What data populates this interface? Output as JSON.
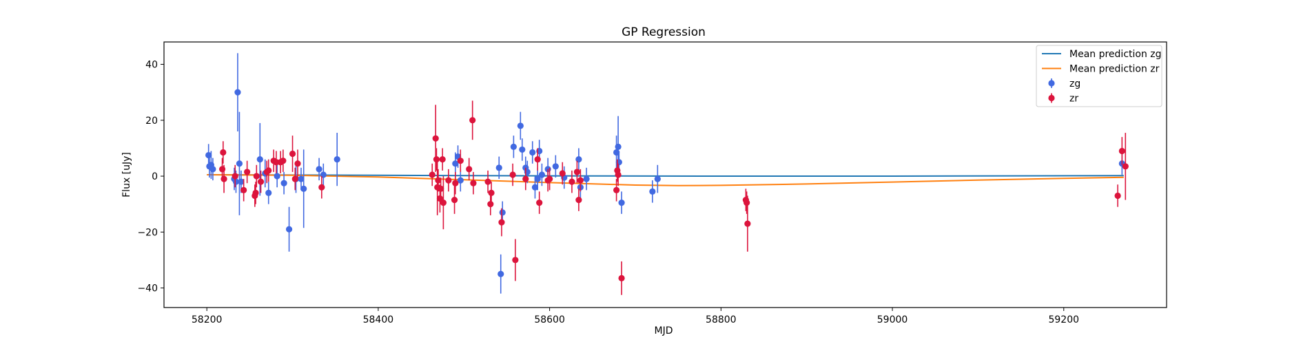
{
  "chart_data": {
    "type": "scatter",
    "title": "GP Regression",
    "xlabel": "MJD",
    "ylabel": "Flux [uJy]",
    "xlim": [
      58150,
      59320
    ],
    "ylim": [
      -47,
      48
    ],
    "xticks": [
      58200,
      58400,
      58600,
      58800,
      59000,
      59200
    ],
    "xtick_labels": [
      "58200",
      "58400",
      "58600",
      "58800",
      "59000",
      "59200"
    ],
    "yticks": [
      -40,
      -20,
      0,
      20,
      40
    ],
    "ytick_labels": [
      "−40",
      "−20",
      "0",
      "20",
      "40"
    ],
    "grid": false,
    "legend_position": "top-right",
    "legend": [
      {
        "label": "Mean prediction zg",
        "kind": "line",
        "color": "#1f77b4"
      },
      {
        "label": "Mean prediction zr",
        "kind": "line",
        "color": "#ff7f0e"
      },
      {
        "label": "zg",
        "kind": "errorbar",
        "color": "#4169e1"
      },
      {
        "label": "zr",
        "kind": "errorbar",
        "color": "#dc143c"
      }
    ],
    "lines": [
      {
        "name": "Mean prediction zg",
        "color": "#1f77b4",
        "x": [
          58200,
          58400,
          58600,
          58800,
          59000,
          59270
        ],
        "y": [
          0.5,
          0.3,
          0.1,
          0.0,
          0.0,
          0.2
        ]
      },
      {
        "name": "Mean prediction zr",
        "color": "#ff7f0e",
        "x": [
          58200,
          58300,
          58400,
          58500,
          58600,
          58700,
          58750,
          58800,
          58900,
          59000,
          59100,
          59200,
          59270
        ],
        "y": [
          0.5,
          0.3,
          -0.3,
          -1.3,
          -2.3,
          -3.2,
          -3.4,
          -3.3,
          -2.8,
          -2.1,
          -1.4,
          -0.8,
          -0.4
        ]
      }
    ],
    "series": [
      {
        "name": "zg",
        "color": "#4169e1",
        "points": [
          {
            "x": 58202,
            "y": 7.5,
            "err": 4
          },
          {
            "x": 58203,
            "y": 3.5,
            "err": 4
          },
          {
            "x": 58205,
            "y": 4,
            "err": 5
          },
          {
            "x": 58207,
            "y": 2.5,
            "err": 4
          },
          {
            "x": 58232,
            "y": -1,
            "err": 4
          },
          {
            "x": 58234,
            "y": -2,
            "err": 4
          },
          {
            "x": 58236,
            "y": 30,
            "err": 14
          },
          {
            "x": 58238,
            "y": 4.5,
            "err": 18.5
          },
          {
            "x": 58240,
            "y": -2,
            "err": 4
          },
          {
            "x": 58262,
            "y": 6,
            "err": 13
          },
          {
            "x": 58268,
            "y": 1,
            "err": 5
          },
          {
            "x": 58272,
            "y": -6,
            "err": 4
          },
          {
            "x": 58282,
            "y": 0,
            "err": 4
          },
          {
            "x": 58290,
            "y": -2.5,
            "err": 4
          },
          {
            "x": 58296,
            "y": -19,
            "err": 8
          },
          {
            "x": 58304,
            "y": -1,
            "err": 5
          },
          {
            "x": 58310,
            "y": -1,
            "err": 4
          },
          {
            "x": 58313,
            "y": -4.5,
            "err": 14
          },
          {
            "x": 58331,
            "y": 2.5,
            "err": 4
          },
          {
            "x": 58336,
            "y": 0.5,
            "err": 4
          },
          {
            "x": 58352,
            "y": 6,
            "err": 9.5
          },
          {
            "x": 58490,
            "y": 4.5,
            "err": 4
          },
          {
            "x": 58493,
            "y": 7,
            "err": 4
          },
          {
            "x": 58496,
            "y": -1.5,
            "err": 4
          },
          {
            "x": 58541,
            "y": 3,
            "err": 4
          },
          {
            "x": 58543,
            "y": -35,
            "err": 7
          },
          {
            "x": 58545,
            "y": -13,
            "err": 4
          },
          {
            "x": 58558,
            "y": 10.5,
            "err": 4
          },
          {
            "x": 58566,
            "y": 18,
            "err": 5
          },
          {
            "x": 58568,
            "y": 9.5,
            "err": 4
          },
          {
            "x": 58572,
            "y": 3,
            "err": 4
          },
          {
            "x": 58574,
            "y": 1.5,
            "err": 4
          },
          {
            "x": 58580,
            "y": 8.5,
            "err": 4
          },
          {
            "x": 58583,
            "y": -4,
            "err": 4
          },
          {
            "x": 58586,
            "y": -1,
            "err": 4
          },
          {
            "x": 58588,
            "y": 9,
            "err": 4
          },
          {
            "x": 58591,
            "y": 0.5,
            "err": 4
          },
          {
            "x": 58598,
            "y": 2.5,
            "err": 4
          },
          {
            "x": 58607,
            "y": 3.5,
            "err": 4
          },
          {
            "x": 58617,
            "y": -0.5,
            "err": 4
          },
          {
            "x": 58634,
            "y": 6,
            "err": 4
          },
          {
            "x": 58636,
            "y": -4,
            "err": 4
          },
          {
            "x": 58643,
            "y": -1,
            "err": 4
          },
          {
            "x": 58678,
            "y": 8.5,
            "err": 6
          },
          {
            "x": 58680,
            "y": 10.5,
            "err": 11
          },
          {
            "x": 58681,
            "y": 5,
            "err": 4
          },
          {
            "x": 58684,
            "y": -9.5,
            "err": 4
          },
          {
            "x": 58720,
            "y": -5.5,
            "err": 4
          },
          {
            "x": 58726,
            "y": -1,
            "err": 5
          },
          {
            "x": 59268,
            "y": 4.5,
            "err": 4
          }
        ]
      },
      {
        "name": "zr",
        "color": "#dc143c",
        "points": [
          {
            "x": 58218,
            "y": 2.5,
            "err": 4
          },
          {
            "x": 58219,
            "y": 8.5,
            "err": 4
          },
          {
            "x": 58220,
            "y": -1,
            "err": 5
          },
          {
            "x": 58233,
            "y": 0,
            "err": 4
          },
          {
            "x": 58243,
            "y": -5,
            "err": 4
          },
          {
            "x": 58247,
            "y": 1.5,
            "err": 4
          },
          {
            "x": 58256,
            "y": -7,
            "err": 4
          },
          {
            "x": 58257,
            "y": -6,
            "err": 4
          },
          {
            "x": 58258,
            "y": 0,
            "err": 4
          },
          {
            "x": 58263,
            "y": -2,
            "err": 4
          },
          {
            "x": 58270,
            "y": 1.5,
            "err": 4
          },
          {
            "x": 58272,
            "y": 2,
            "err": 4
          },
          {
            "x": 58278,
            "y": 5.5,
            "err": 4
          },
          {
            "x": 58281,
            "y": 5,
            "err": 4
          },
          {
            "x": 58286,
            "y": 5,
            "err": 4
          },
          {
            "x": 58289,
            "y": 5.5,
            "err": 4
          },
          {
            "x": 58300,
            "y": 8,
            "err": 6.5
          },
          {
            "x": 58303,
            "y": -1,
            "err": 4
          },
          {
            "x": 58306,
            "y": 4.5,
            "err": 5
          },
          {
            "x": 58334,
            "y": -4,
            "err": 4
          },
          {
            "x": 58463,
            "y": 0.5,
            "err": 4
          },
          {
            "x": 58467,
            "y": 13.5,
            "err": 12
          },
          {
            "x": 58468,
            "y": 6,
            "err": 4
          },
          {
            "x": 58469,
            "y": -4,
            "err": 10
          },
          {
            "x": 58470,
            "y": -1.5,
            "err": 4
          },
          {
            "x": 58472,
            "y": -8,
            "err": 5
          },
          {
            "x": 58473,
            "y": -4.5,
            "err": 4
          },
          {
            "x": 58475,
            "y": 6,
            "err": 4
          },
          {
            "x": 58476,
            "y": -9.5,
            "err": 9.5
          },
          {
            "x": 58482,
            "y": -1.5,
            "err": 4
          },
          {
            "x": 58489,
            "y": -8.5,
            "err": 5
          },
          {
            "x": 58490,
            "y": -2.5,
            "err": 4
          },
          {
            "x": 58496,
            "y": 5.5,
            "err": 4
          },
          {
            "x": 58506,
            "y": 2.5,
            "err": 4
          },
          {
            "x": 58510,
            "y": 20,
            "err": 7
          },
          {
            "x": 58511,
            "y": -2.5,
            "err": 4
          },
          {
            "x": 58528,
            "y": -2,
            "err": 4
          },
          {
            "x": 58531,
            "y": -10,
            "err": 4
          },
          {
            "x": 58532,
            "y": -6,
            "err": 4
          },
          {
            "x": 58544,
            "y": -16.5,
            "err": 5
          },
          {
            "x": 58557,
            "y": 0.5,
            "err": 4
          },
          {
            "x": 58560,
            "y": -30,
            "err": 7.5
          },
          {
            "x": 58572,
            "y": -1,
            "err": 4
          },
          {
            "x": 58586,
            "y": 6,
            "err": 4
          },
          {
            "x": 58588,
            "y": -9.5,
            "err": 4
          },
          {
            "x": 58598,
            "y": -1.5,
            "err": 4
          },
          {
            "x": 58600,
            "y": -1,
            "err": 4
          },
          {
            "x": 58615,
            "y": 1,
            "err": 4
          },
          {
            "x": 58626,
            "y": -2,
            "err": 4
          },
          {
            "x": 58632,
            "y": 1.5,
            "err": 4
          },
          {
            "x": 58634,
            "y": -8.5,
            "err": 4
          },
          {
            "x": 58636,
            "y": -1.5,
            "err": 4
          },
          {
            "x": 58678,
            "y": -5,
            "err": 4
          },
          {
            "x": 58679,
            "y": 2,
            "err": 4
          },
          {
            "x": 58680,
            "y": 0.5,
            "err": 4
          },
          {
            "x": 58684,
            "y": -36.5,
            "err": 6
          },
          {
            "x": 58829,
            "y": -8.5,
            "err": 4
          },
          {
            "x": 58830,
            "y": -9.5,
            "err": 4
          },
          {
            "x": 58831,
            "y": -17,
            "err": 10
          },
          {
            "x": 59263,
            "y": -7,
            "err": 4
          },
          {
            "x": 59268,
            "y": 9,
            "err": 5
          },
          {
            "x": 59272,
            "y": 3.5,
            "err": 12
          }
        ]
      }
    ]
  }
}
